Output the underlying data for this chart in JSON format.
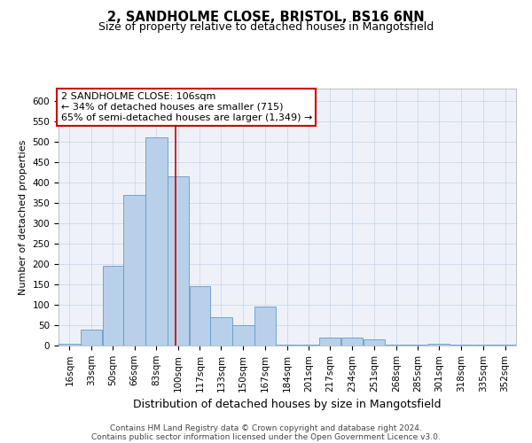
{
  "title_line1": "2, SANDHOLME CLOSE, BRISTOL, BS16 6NN",
  "title_line2": "Size of property relative to detached houses in Mangotsfield",
  "xlabel": "Distribution of detached houses by size in Mangotsfield",
  "ylabel": "Number of detached properties",
  "footnote_line1": "Contains HM Land Registry data © Crown copyright and database right 2024.",
  "footnote_line2": "Contains public sector information licensed under the Open Government Licence v3.0.",
  "annotation_line1": "2 SANDHOLME CLOSE: 106sqm",
  "annotation_line2": "← 34% of detached houses are smaller (715)",
  "annotation_line3": "65% of semi-detached houses are larger (1,349) →",
  "bar_left_edges": [
    16,
    33,
    50,
    66,
    83,
    100,
    117,
    133,
    150,
    167,
    184,
    201,
    217,
    234,
    251,
    268,
    285,
    301,
    318,
    335,
    352
  ],
  "bar_widths": [
    17,
    17,
    16,
    17,
    17,
    17,
    16,
    17,
    17,
    17,
    17,
    16,
    17,
    17,
    17,
    17,
    16,
    17,
    17,
    17,
    17
  ],
  "bar_heights": [
    5,
    40,
    195,
    370,
    510,
    415,
    145,
    70,
    50,
    95,
    2,
    2,
    20,
    20,
    15,
    2,
    2,
    5,
    2,
    2,
    2
  ],
  "bar_color": "#b8d0ea",
  "bar_edge_color": "#6699cc",
  "grid_color": "#ccd8e8",
  "vline_color": "#cc0000",
  "vline_x": 106,
  "ylim": [
    0,
    630
  ],
  "yticks": [
    0,
    50,
    100,
    150,
    200,
    250,
    300,
    350,
    400,
    450,
    500,
    550,
    600
  ],
  "xtick_labels": [
    "16sqm",
    "33sqm",
    "50sqm",
    "66sqm",
    "83sqm",
    "100sqm",
    "117sqm",
    "133sqm",
    "150sqm",
    "167sqm",
    "184sqm",
    "201sqm",
    "217sqm",
    "234sqm",
    "251sqm",
    "268sqm",
    "285sqm",
    "301sqm",
    "318sqm",
    "335sqm",
    "352sqm"
  ],
  "bg_color": "#eef2f8",
  "fig_bg_color": "#ffffff",
  "annotation_box_facecolor": "#ffffff",
  "annotation_box_edgecolor": "#cc0000",
  "title1_fontsize": 10.5,
  "title2_fontsize": 9,
  "ylabel_fontsize": 8,
  "xlabel_fontsize": 9,
  "tick_fontsize": 7.5,
  "annot_fontsize": 8
}
